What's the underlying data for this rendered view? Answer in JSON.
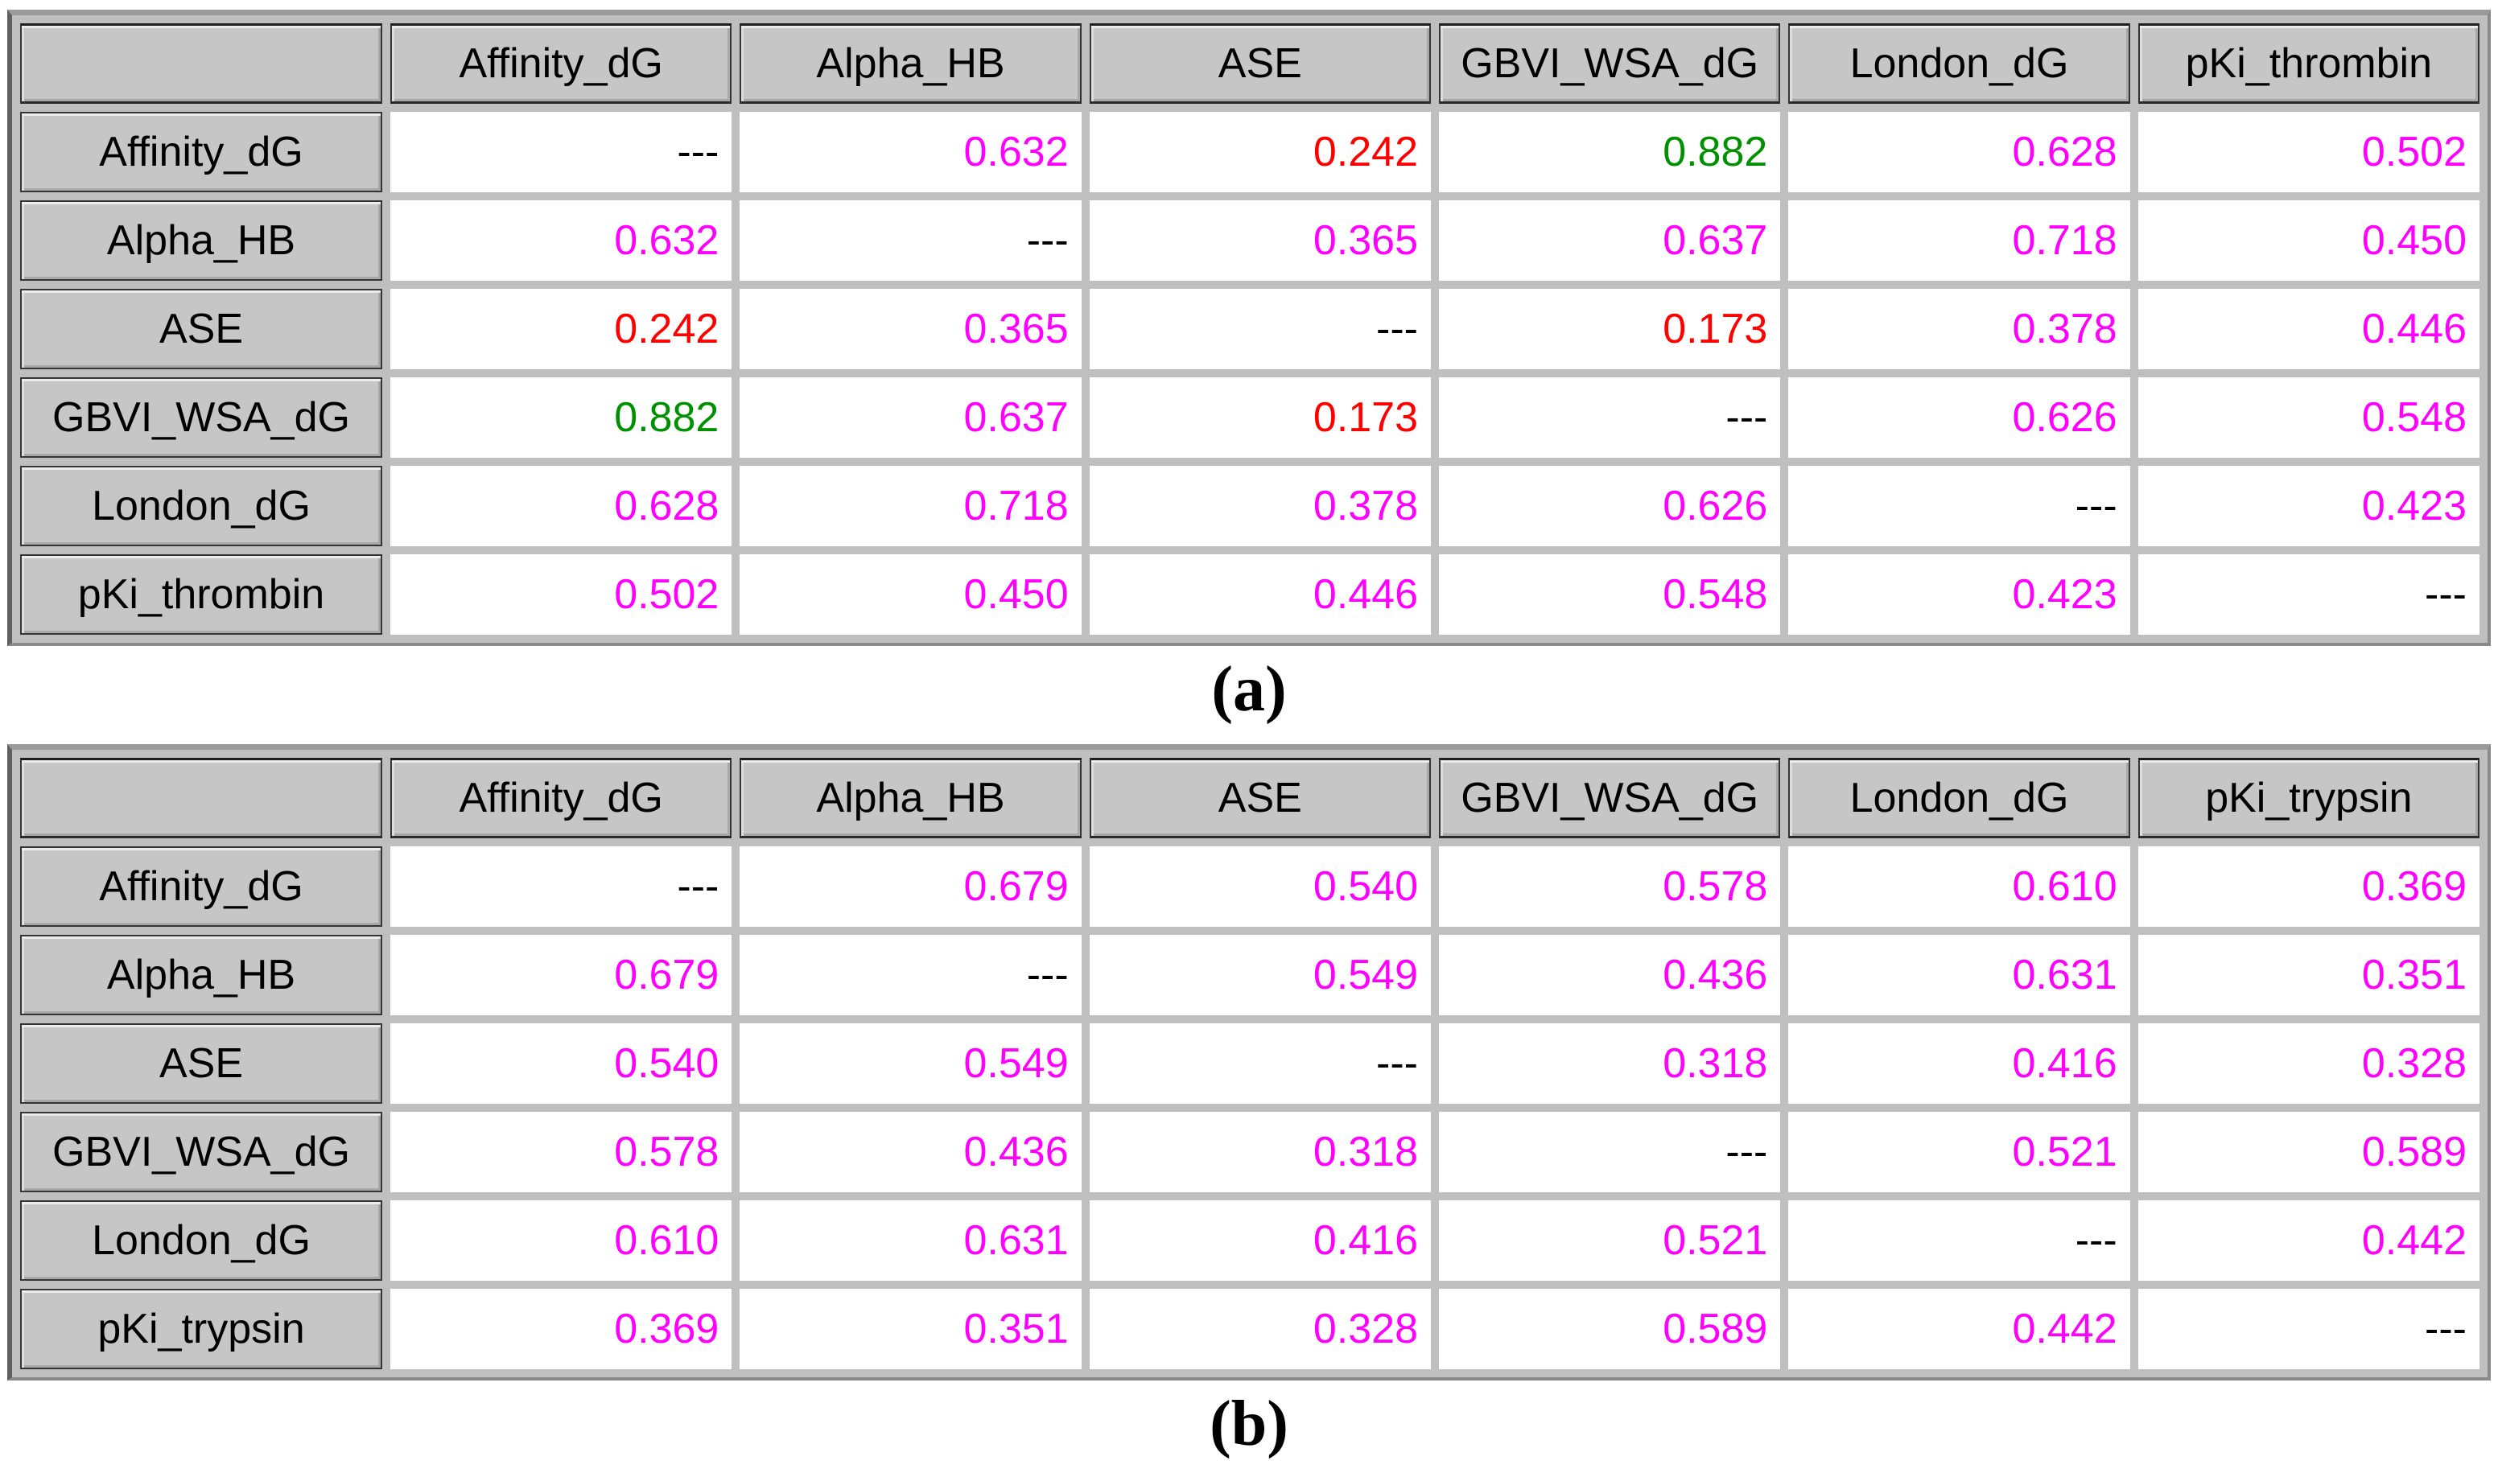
{
  "figure": {
    "panel_a": {
      "label": "(a)",
      "headers": [
        "",
        "Affinity_dG",
        "Alpha_HB",
        "ASE",
        "GBVI_WSA_dG",
        "London_dG",
        "pKi_thrombin"
      ],
      "rows": [
        {
          "label": "Affinity_dG",
          "cells": [
            {
              "v": "---",
              "c": "black"
            },
            {
              "v": "0.632",
              "c": "magenta"
            },
            {
              "v": "0.242",
              "c": "red"
            },
            {
              "v": "0.882",
              "c": "green"
            },
            {
              "v": "0.628",
              "c": "magenta"
            },
            {
              "v": "0.502",
              "c": "magenta"
            }
          ]
        },
        {
          "label": "Alpha_HB",
          "cells": [
            {
              "v": "0.632",
              "c": "magenta"
            },
            {
              "v": "---",
              "c": "black"
            },
            {
              "v": "0.365",
              "c": "magenta"
            },
            {
              "v": "0.637",
              "c": "magenta"
            },
            {
              "v": "0.718",
              "c": "magenta"
            },
            {
              "v": "0.450",
              "c": "magenta"
            }
          ]
        },
        {
          "label": "ASE",
          "cells": [
            {
              "v": "0.242",
              "c": "red"
            },
            {
              "v": "0.365",
              "c": "magenta"
            },
            {
              "v": "---",
              "c": "black"
            },
            {
              "v": "0.173",
              "c": "red"
            },
            {
              "v": "0.378",
              "c": "magenta"
            },
            {
              "v": "0.446",
              "c": "magenta"
            }
          ]
        },
        {
          "label": "GBVI_WSA_dG",
          "cells": [
            {
              "v": "0.882",
              "c": "green"
            },
            {
              "v": "0.637",
              "c": "magenta"
            },
            {
              "v": "0.173",
              "c": "red"
            },
            {
              "v": "---",
              "c": "black"
            },
            {
              "v": "0.626",
              "c": "magenta"
            },
            {
              "v": "0.548",
              "c": "magenta"
            }
          ]
        },
        {
          "label": "London_dG",
          "cells": [
            {
              "v": "0.628",
              "c": "magenta"
            },
            {
              "v": "0.718",
              "c": "magenta"
            },
            {
              "v": "0.378",
              "c": "magenta"
            },
            {
              "v": "0.626",
              "c": "magenta"
            },
            {
              "v": "---",
              "c": "black"
            },
            {
              "v": "0.423",
              "c": "magenta"
            }
          ]
        },
        {
          "label": "pKi_thrombin",
          "cells": [
            {
              "v": "0.502",
              "c": "magenta"
            },
            {
              "v": "0.450",
              "c": "magenta"
            },
            {
              "v": "0.446",
              "c": "magenta"
            },
            {
              "v": "0.548",
              "c": "magenta"
            },
            {
              "v": "0.423",
              "c": "magenta"
            },
            {
              "v": "---",
              "c": "black"
            }
          ]
        }
      ]
    },
    "panel_b": {
      "label": "(b)",
      "headers": [
        "",
        "Affinity_dG",
        "Alpha_HB",
        "ASE",
        "GBVI_WSA_dG",
        "London_dG",
        "pKi_trypsin"
      ],
      "rows": [
        {
          "label": "Affinity_dG",
          "cells": [
            {
              "v": "---",
              "c": "black"
            },
            {
              "v": "0.679",
              "c": "magenta"
            },
            {
              "v": "0.540",
              "c": "magenta"
            },
            {
              "v": "0.578",
              "c": "magenta"
            },
            {
              "v": "0.610",
              "c": "magenta"
            },
            {
              "v": "0.369",
              "c": "magenta"
            }
          ]
        },
        {
          "label": "Alpha_HB",
          "cells": [
            {
              "v": "0.679",
              "c": "magenta"
            },
            {
              "v": "---",
              "c": "black"
            },
            {
              "v": "0.549",
              "c": "magenta"
            },
            {
              "v": "0.436",
              "c": "magenta"
            },
            {
              "v": "0.631",
              "c": "magenta"
            },
            {
              "v": "0.351",
              "c": "magenta"
            }
          ]
        },
        {
          "label": "ASE",
          "cells": [
            {
              "v": "0.540",
              "c": "magenta"
            },
            {
              "v": "0.549",
              "c": "magenta"
            },
            {
              "v": "---",
              "c": "black"
            },
            {
              "v": "0.318",
              "c": "magenta"
            },
            {
              "v": "0.416",
              "c": "magenta"
            },
            {
              "v": "0.328",
              "c": "magenta"
            }
          ]
        },
        {
          "label": "GBVI_WSA_dG",
          "cells": [
            {
              "v": "0.578",
              "c": "magenta"
            },
            {
              "v": "0.436",
              "c": "magenta"
            },
            {
              "v": "0.318",
              "c": "magenta"
            },
            {
              "v": "---",
              "c": "black"
            },
            {
              "v": "0.521",
              "c": "magenta"
            },
            {
              "v": "0.589",
              "c": "magenta"
            }
          ]
        },
        {
          "label": "London_dG",
          "cells": [
            {
              "v": "0.610",
              "c": "magenta"
            },
            {
              "v": "0.631",
              "c": "magenta"
            },
            {
              "v": "0.416",
              "c": "magenta"
            },
            {
              "v": "0.521",
              "c": "magenta"
            },
            {
              "v": "---",
              "c": "black"
            },
            {
              "v": "0.442",
              "c": "magenta"
            }
          ]
        },
        {
          "label": "pKi_trypsin",
          "cells": [
            {
              "v": "0.369",
              "c": "magenta"
            },
            {
              "v": "0.351",
              "c": "magenta"
            },
            {
              "v": "0.328",
              "c": "magenta"
            },
            {
              "v": "0.589",
              "c": "magenta"
            },
            {
              "v": "0.442",
              "c": "magenta"
            },
            {
              "v": "---",
              "c": "black"
            }
          ]
        }
      ]
    }
  },
  "value_colors": {
    "magenta": "#ff00ff",
    "red": "#ff0000",
    "green": "#009100",
    "black": "#000000"
  },
  "surface_colors": {
    "header_bg": "#c6c6c6",
    "grid_lines": "#bfbfbf",
    "data_bg": "#ffffff"
  }
}
